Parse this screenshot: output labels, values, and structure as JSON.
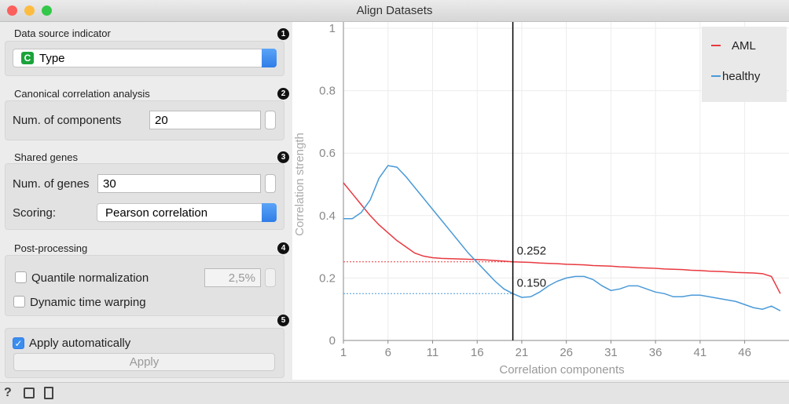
{
  "window": {
    "title": "Align Datasets"
  },
  "controls": {
    "data_source": {
      "heading": "Data source indicator",
      "badge": "C",
      "value": "Type",
      "marker": "1"
    },
    "cca": {
      "heading": "Canonical correlation analysis",
      "label": "Num. of components",
      "value": "20",
      "marker": "2"
    },
    "shared_genes": {
      "heading": "Shared genes",
      "genes_label": "Num. of genes",
      "genes_value": "30",
      "scoring_label": "Scoring:",
      "scoring_value": "Pearson correlation",
      "marker": "3"
    },
    "post": {
      "heading": "Post-processing",
      "quantile": "Quantile normalization",
      "quantile_value": "2,5%",
      "dtw": "Dynamic time warping",
      "marker": "4"
    },
    "apply": {
      "marker": "5",
      "auto": "Apply automatically",
      "button": "Apply"
    }
  },
  "chart_data": {
    "type": "line",
    "x_label": "Correlation components",
    "y_label": "Correlation strength",
    "x": [
      1,
      2,
      3,
      4,
      5,
      6,
      7,
      8,
      9,
      10,
      11,
      12,
      13,
      14,
      15,
      16,
      17,
      18,
      19,
      20,
      21,
      22,
      23,
      24,
      25,
      26,
      27,
      28,
      29,
      30,
      31,
      32,
      33,
      34,
      35,
      36,
      37,
      38,
      39,
      40,
      41,
      42,
      43,
      44,
      45,
      46,
      47,
      48,
      49,
      50
    ],
    "series": [
      {
        "name": "AML",
        "color": "#e8393f",
        "values": [
          0.505,
          0.47,
          0.435,
          0.4,
          0.37,
          0.345,
          0.32,
          0.3,
          0.28,
          0.27,
          0.265,
          0.263,
          0.262,
          0.261,
          0.26,
          0.259,
          0.258,
          0.256,
          0.254,
          0.252,
          0.251,
          0.25,
          0.248,
          0.247,
          0.246,
          0.244,
          0.243,
          0.242,
          0.24,
          0.239,
          0.238,
          0.236,
          0.235,
          0.233,
          0.232,
          0.231,
          0.229,
          0.228,
          0.227,
          0.225,
          0.224,
          0.222,
          0.221,
          0.22,
          0.218,
          0.217,
          0.216,
          0.214,
          0.205,
          0.15
        ]
      },
      {
        "name": "healthy",
        "color": "#4a9ad8",
        "values": [
          0.39,
          0.39,
          0.41,
          0.45,
          0.52,
          0.56,
          0.555,
          0.525,
          0.49,
          0.455,
          0.42,
          0.385,
          0.35,
          0.315,
          0.28,
          0.25,
          0.22,
          0.19,
          0.165,
          0.15,
          0.138,
          0.14,
          0.155,
          0.175,
          0.19,
          0.2,
          0.205,
          0.205,
          0.195,
          0.175,
          0.16,
          0.165,
          0.175,
          0.175,
          0.165,
          0.155,
          0.15,
          0.14,
          0.14,
          0.145,
          0.145,
          0.14,
          0.135,
          0.13,
          0.125,
          0.115,
          0.105,
          0.1,
          0.11,
          0.095
        ]
      }
    ],
    "xlim": [
      1,
      50
    ],
    "ylim": [
      0,
      1
    ],
    "xticks": [
      1,
      6,
      11,
      16,
      21,
      26,
      31,
      36,
      41,
      46
    ],
    "yticks": [
      0,
      0.2,
      0.4,
      0.6,
      0.8,
      1
    ],
    "grid": true,
    "legend": "top-right",
    "cursor_x": 20,
    "annotations": [
      {
        "value": 0.252,
        "label": "0.252"
      },
      {
        "value": 0.15,
        "label": "0.150"
      }
    ]
  }
}
